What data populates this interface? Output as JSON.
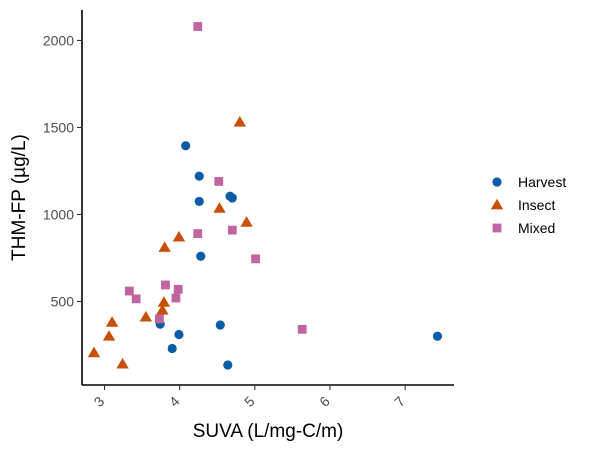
{
  "chart_data": {
    "type": "scatter",
    "title": "",
    "xlabel": "SUVA (L/mg-C/m)",
    "ylabel": "THM-FP (µg/L)",
    "xlim": [
      2.7,
      7.65
    ],
    "ylim": [
      20,
      2175
    ],
    "xticks": [
      3,
      4,
      5,
      6,
      7
    ],
    "yticks": [
      500,
      1000,
      1500,
      2000
    ],
    "grid": false,
    "legend_position": "right",
    "series": [
      {
        "name": "Harvest",
        "marker": "circle",
        "color": "#0c5da5",
        "points": [
          {
            "x": 4.08,
            "y": 1395
          },
          {
            "x": 4.26,
            "y": 1220
          },
          {
            "x": 4.26,
            "y": 1075
          },
          {
            "x": 4.67,
            "y": 1105
          },
          {
            "x": 4.7,
            "y": 1095
          },
          {
            "x": 4.28,
            "y": 760
          },
          {
            "x": 3.74,
            "y": 370
          },
          {
            "x": 4.54,
            "y": 365
          },
          {
            "x": 3.99,
            "y": 310
          },
          {
            "x": 3.9,
            "y": 230
          },
          {
            "x": 4.64,
            "y": 135
          },
          {
            "x": 7.43,
            "y": 300
          }
        ]
      },
      {
        "name": "Insect",
        "marker": "triangle",
        "color": "#c8500a",
        "points": [
          {
            "x": 4.8,
            "y": 1530
          },
          {
            "x": 4.53,
            "y": 1035
          },
          {
            "x": 4.89,
            "y": 955
          },
          {
            "x": 3.99,
            "y": 870
          },
          {
            "x": 3.8,
            "y": 810
          },
          {
            "x": 3.79,
            "y": 495
          },
          {
            "x": 3.77,
            "y": 450
          },
          {
            "x": 3.55,
            "y": 410
          },
          {
            "x": 3.1,
            "y": 380
          },
          {
            "x": 3.06,
            "y": 300
          },
          {
            "x": 2.86,
            "y": 205
          },
          {
            "x": 3.24,
            "y": 140
          }
        ]
      },
      {
        "name": "Mixed",
        "marker": "square",
        "color": "#c065a0",
        "points": [
          {
            "x": 4.24,
            "y": 2080
          },
          {
            "x": 4.52,
            "y": 1190
          },
          {
            "x": 4.24,
            "y": 890
          },
          {
            "x": 4.7,
            "y": 910
          },
          {
            "x": 5.01,
            "y": 745
          },
          {
            "x": 3.81,
            "y": 595
          },
          {
            "x": 3.98,
            "y": 570
          },
          {
            "x": 3.33,
            "y": 560
          },
          {
            "x": 3.42,
            "y": 515
          },
          {
            "x": 3.95,
            "y": 520
          },
          {
            "x": 3.73,
            "y": 400
          },
          {
            "x": 5.63,
            "y": 340
          }
        ]
      }
    ]
  }
}
